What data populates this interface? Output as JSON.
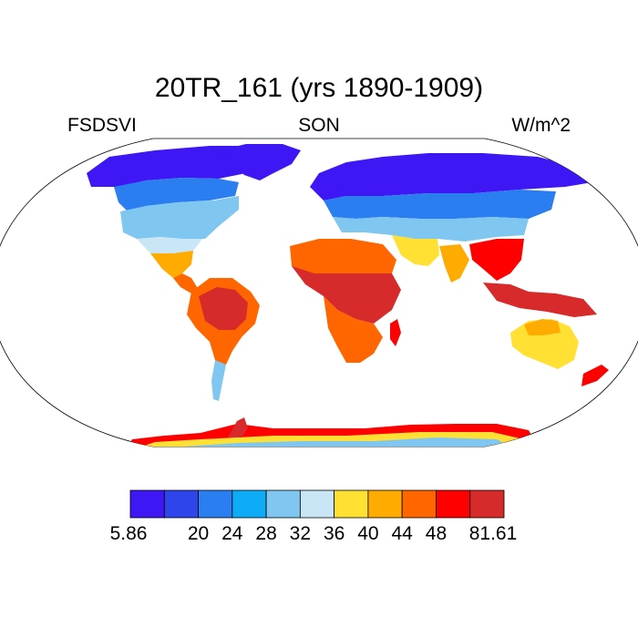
{
  "title": "20TR_161 (yrs 1890-1909)",
  "left_label": "FSDSVI",
  "center_label": "SON",
  "right_label": "W/m^2",
  "colorbar": {
    "colors": [
      "#3f17f5",
      "#2d45ea",
      "#2a7ef0",
      "#0eacf7",
      "#7fc6f0",
      "#c8e6f6",
      "#ffe033",
      "#ffab00",
      "#ff6600",
      "#ff0000",
      "#d72a2a"
    ],
    "labels": [
      "5.86",
      "20",
      "24",
      "28",
      "32",
      "36",
      "40",
      "44",
      "48",
      "81.61"
    ]
  }
}
